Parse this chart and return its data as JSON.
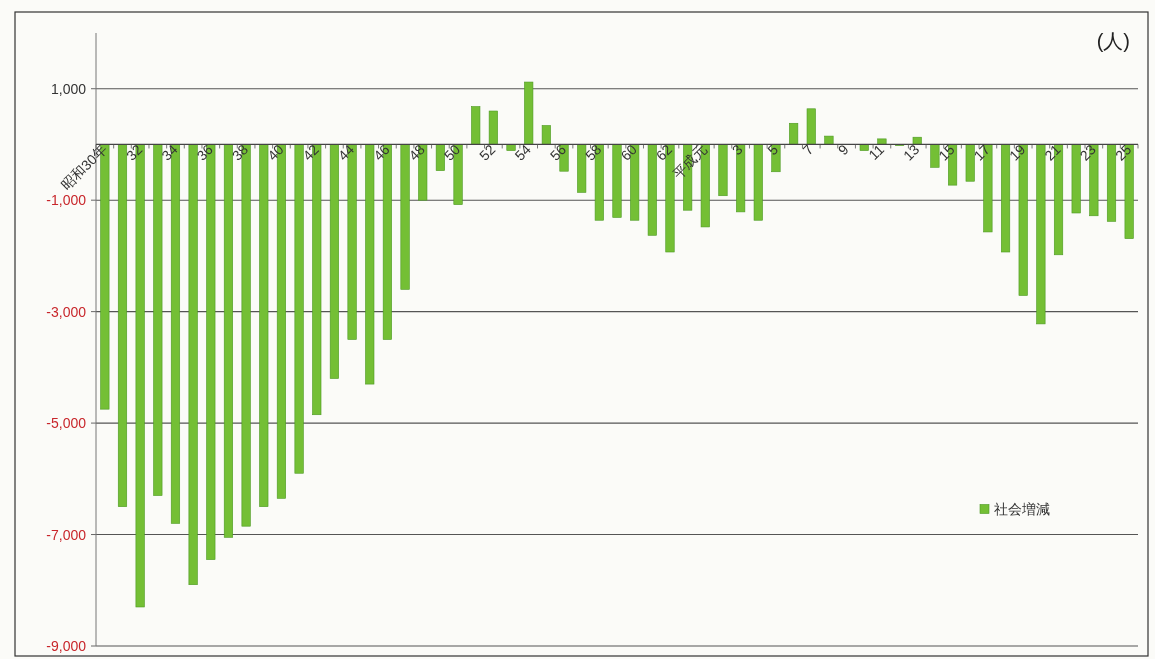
{
  "chart_data": {
    "type": "bar",
    "ylabel": "(人)",
    "categories": [
      "昭和30年",
      null,
      "32",
      null,
      "34",
      null,
      "36",
      null,
      "38",
      null,
      "40",
      null,
      "42",
      null,
      "44",
      null,
      "46",
      null,
      "48",
      null,
      "50",
      null,
      "52",
      null,
      "54",
      null,
      "56",
      null,
      "58",
      null,
      "60",
      null,
      "62",
      null,
      "平成元",
      null,
      "3",
      null,
      "5",
      null,
      "7",
      null,
      "9",
      null,
      "11",
      null,
      "13",
      null,
      "15",
      null,
      "17",
      null,
      "19",
      null,
      "21",
      null,
      "23",
      null,
      "25"
    ],
    "series": [
      {
        "name": "社会増減",
        "color": "#74bf35",
        "values": [
          -4750,
          -6500,
          -8300,
          -6300,
          -6800,
          -7900,
          -7450,
          -7050,
          -6850,
          -6500,
          -6350,
          -5900,
          -4850,
          -4200,
          -3500,
          -4300,
          -3500,
          -2600,
          -1000,
          -470,
          -1080,
          680,
          600,
          -110,
          1120,
          340,
          -480,
          -860,
          -1360,
          -1310,
          -1360,
          -1630,
          -1930,
          -1180,
          -1480,
          -920,
          -1210,
          -1360,
          -490,
          380,
          640,
          150,
          0,
          -110,
          100,
          -20,
          130,
          -410,
          -730,
          -660,
          -1570,
          -1930,
          -2710,
          -3220,
          -1980,
          -1230,
          -1280,
          -1380,
          -1690
        ]
      }
    ],
    "ylim": [
      -9000,
      2000
    ],
    "yticks": [
      {
        "value": -9000,
        "label": "-9,000"
      },
      {
        "value": -7000,
        "label": "-7,000"
      },
      {
        "value": -5000,
        "label": "-5,000"
      },
      {
        "value": -3000,
        "label": "-3,000"
      },
      {
        "value": -1000,
        "label": "-1,000"
      },
      {
        "value": 1000,
        "label": "1,000"
      }
    ],
    "grid": "y",
    "legend": "right"
  }
}
